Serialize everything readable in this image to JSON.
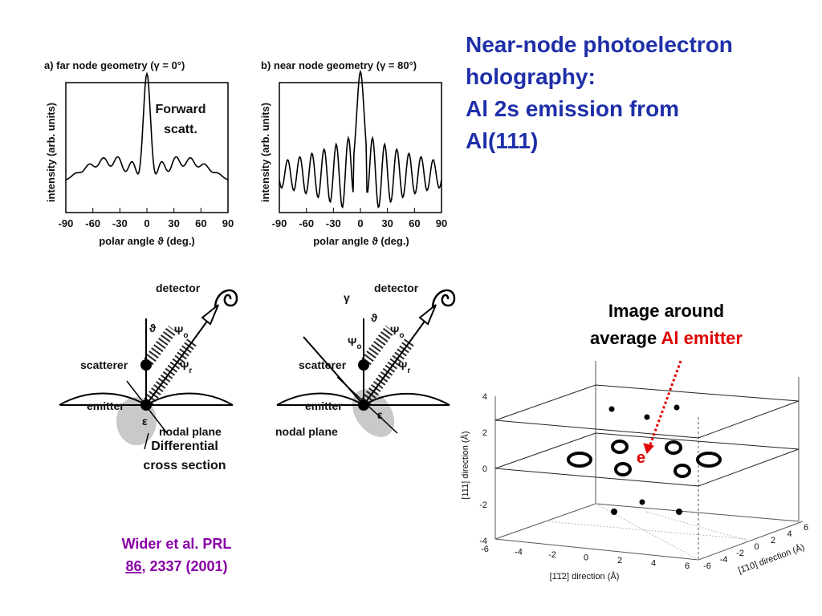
{
  "title": [
    "Near-node photoelectron",
    "holography:",
    "Al 2s emission from",
    "Al(111)"
  ],
  "figure_a": {
    "caption": "a) far node geometry (γ = 0°)",
    "ylabel": "intensity (arb. units)",
    "xlabel": "polar angle ϑ (deg.)",
    "xticks": [
      "-90",
      "-60",
      "-30",
      "0",
      "30",
      "60",
      "90"
    ],
    "annotation": [
      "Forward",
      "scatt."
    ]
  },
  "figure_b": {
    "caption": "b) near node geometry (γ = 80°)",
    "ylabel": "intensity (arb. units)",
    "xlabel": "polar angle ϑ (deg.)",
    "xticks": [
      "-90",
      "-60",
      "-30",
      "0",
      "30",
      "60",
      "90"
    ]
  },
  "diagram_a": {
    "detector": "detector",
    "theta": "ϑ",
    "psi_o": {
      "symbol": "Ψ",
      "sub": "o"
    },
    "psi_r": {
      "symbol": "Ψ",
      "sub": "r"
    },
    "scatterer": "scatterer",
    "emitter": "emitter",
    "epsilon": "ε",
    "nodal_plane": "nodal plane",
    "note": [
      "Differential",
      "cross section"
    ]
  },
  "diagram_b": {
    "gamma": "γ",
    "detector": "detector",
    "theta": "ϑ",
    "psi_o_left": {
      "symbol": "Ψ",
      "sub": "o"
    },
    "psi_o": {
      "symbol": "Ψ",
      "sub": "o"
    },
    "psi_r": {
      "symbol": "Ψ",
      "sub": "r"
    },
    "scatterer": "scatterer",
    "emitter": "emitter",
    "epsilon": "ε",
    "nodal_plane": "nodal plane"
  },
  "image_caption": {
    "line1": "Image around",
    "prefix": "average ",
    "highlight": "Al emitter"
  },
  "plot3d": {
    "zlabel": "[111] direction (Å)",
    "xlabel": "[1̄1̄2] direction (Å)",
    "ylabel": "[1̄10] direction (Å)",
    "zticks": [
      "4",
      "2",
      "0",
      "-2",
      "-4"
    ],
    "xticks": [
      "-6",
      "-4",
      "-2",
      "0",
      "2",
      "4",
      "6"
    ],
    "yticks": [
      "-6",
      "-4",
      "-2",
      "0",
      "2",
      "4",
      "6"
    ],
    "marker": "e"
  },
  "citation": {
    "line1": "Wider et al. PRL",
    "volume": "86",
    "rest": ", 2337 (2001)"
  }
}
